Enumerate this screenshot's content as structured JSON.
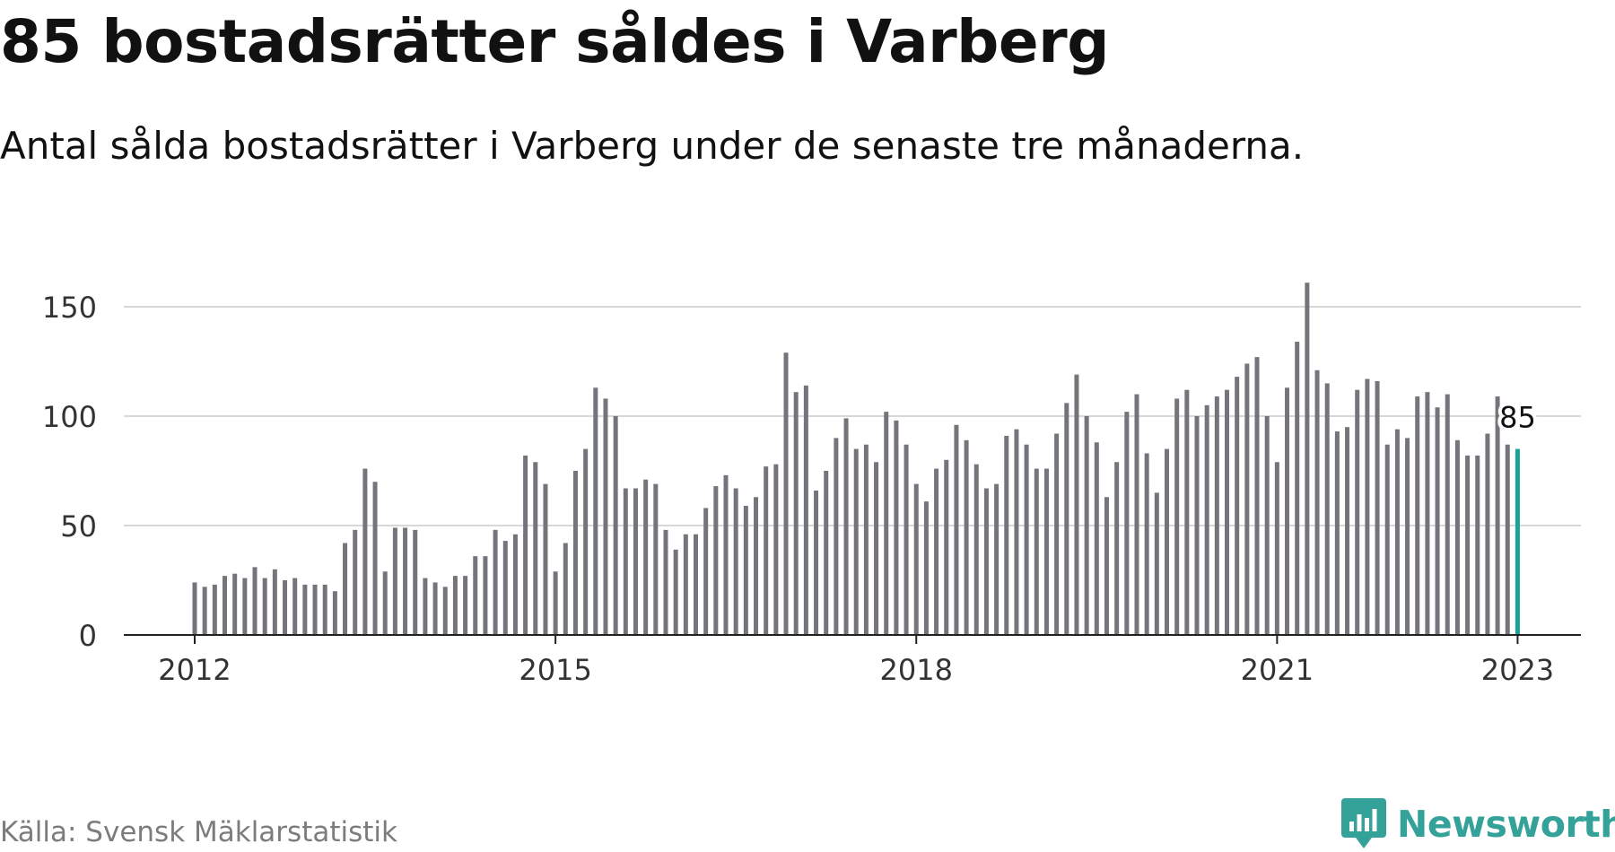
{
  "title": "85 bostadsrätter såldes i Varberg",
  "subtitle": "Antal sålda bostadsrätter i Varberg under de senaste tre månaderna.",
  "source": "Källa: Svensk Mäklarstatistik",
  "brand": {
    "name": "Newsworthy",
    "logo_icon": "newsworthy-chart-icon",
    "color": "#35a29a"
  },
  "colors": {
    "bar": "#75747b",
    "highlight": "#1aa39b",
    "grid": "#d8d8d8",
    "axis": "#222222",
    "tick_text": "#333333"
  },
  "chart_data": {
    "type": "bar",
    "title": "85 bostadsrätter såldes i Varberg",
    "subtitle": "Antal sålda bostadsrätter i Varberg under de senaste tre månaderna.",
    "x_start": "2012-01",
    "x_interval": "month",
    "xlabel": "",
    "ylabel": "",
    "ylim": [
      0,
      165
    ],
    "yticks": [
      0,
      50,
      100,
      150
    ],
    "xticks": [
      {
        "label": "2012",
        "index": 0
      },
      {
        "label": "2015",
        "index": 36
      },
      {
        "label": "2018",
        "index": 72
      },
      {
        "label": "2021",
        "index": 108
      },
      {
        "label": "2023",
        "index": 132
      }
    ],
    "grid": true,
    "values": [
      24,
      22,
      23,
      27,
      28,
      26,
      31,
      26,
      30,
      25,
      26,
      23,
      23,
      23,
      20,
      42,
      48,
      76,
      70,
      29,
      49,
      49,
      48,
      26,
      24,
      22,
      27,
      27,
      36,
      36,
      48,
      43,
      46,
      82,
      79,
      69,
      29,
      42,
      75,
      85,
      113,
      108,
      100,
      67,
      67,
      71,
      69,
      48,
      39,
      46,
      46,
      58,
      68,
      73,
      67,
      59,
      63,
      77,
      78,
      129,
      111,
      114,
      66,
      75,
      90,
      99,
      85,
      87,
      79,
      102,
      98,
      87,
      69,
      61,
      76,
      80,
      96,
      89,
      78,
      67,
      69,
      91,
      94,
      87,
      76,
      76,
      92,
      106,
      119,
      100,
      88,
      63,
      79,
      102,
      110,
      83,
      65,
      85,
      108,
      112,
      100,
      105,
      109,
      112,
      118,
      124,
      127,
      100,
      79,
      113,
      134,
      161,
      121,
      115,
      93,
      95,
      112,
      117,
      116,
      87,
      94,
      90,
      109,
      111,
      104,
      110,
      89,
      82,
      82,
      92,
      109,
      87,
      85
    ],
    "highlight": {
      "index": 132,
      "label": "85"
    }
  }
}
